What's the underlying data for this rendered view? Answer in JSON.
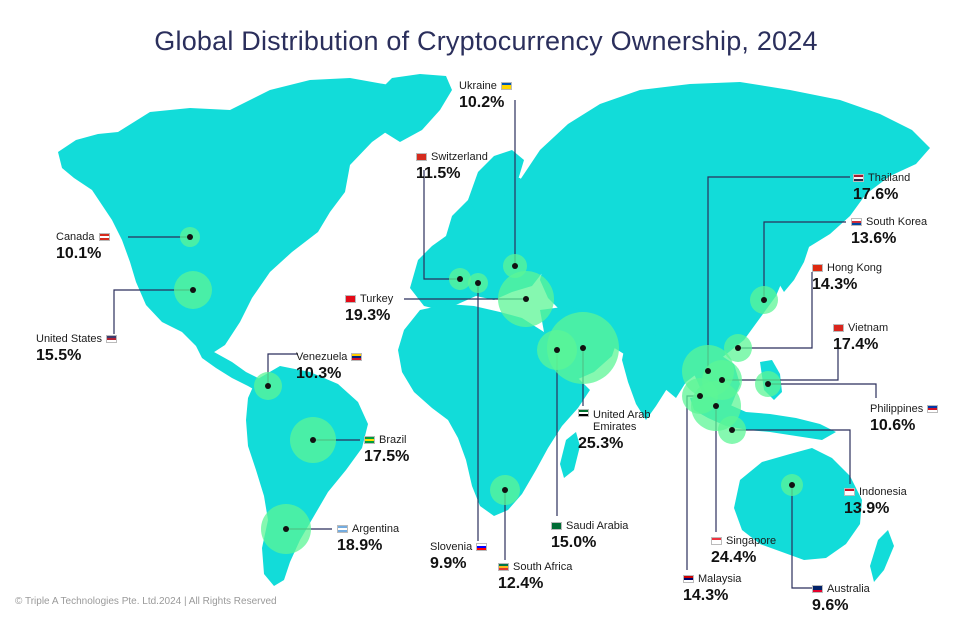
{
  "title": "Global Distribution of Cryptocurrency Ownership, 2024",
  "copyright": "© Triple A Technologies Pte. Ltd.2024 | All Rights Reserved",
  "colors": {
    "land": "#12dcd9",
    "bubble": "#5cf596",
    "line": "#2b2f5c",
    "title": "#2b2f5c"
  },
  "countries": [
    {
      "name": "Canada",
      "value": "10.1%",
      "flag": [
        "#d52b1e",
        "#ffffff",
        "#d52b1e"
      ]
    },
    {
      "name": "United States",
      "value": "15.5%",
      "flag": [
        "#3c3b6e",
        "#b22234",
        "#ffffff"
      ]
    },
    {
      "name": "Venezuela",
      "value": "10.3%",
      "flag": [
        "#ffcc00",
        "#00247d",
        "#cf142b"
      ]
    },
    {
      "name": "Brazil",
      "value": "17.5%",
      "flag": [
        "#009c3b",
        "#ffdf00",
        "#009c3b"
      ]
    },
    {
      "name": "Argentina",
      "value": "18.9%",
      "flag": [
        "#74acdf",
        "#ffffff",
        "#74acdf"
      ]
    },
    {
      "name": "Switzerland",
      "value": "11.5%",
      "flag": [
        "#d52b1e",
        "#d52b1e",
        "#d52b1e"
      ]
    },
    {
      "name": "Ukraine",
      "value": "10.2%",
      "flag": [
        "#0057b7",
        "#ffd700",
        "#ffd700"
      ]
    },
    {
      "name": "Turkey",
      "value": "19.3%",
      "flag": [
        "#e30a17",
        "#e30a17",
        "#e30a17"
      ]
    },
    {
      "name": "Slovenia",
      "value": "9.9%",
      "flag": [
        "#ffffff",
        "#0000ff",
        "#ff0000"
      ]
    },
    {
      "name": "South Africa",
      "value": "12.4%",
      "flag": [
        "#007749",
        "#ffb81c",
        "#de3831"
      ]
    },
    {
      "name": "Saudi Arabia",
      "value": "15.0%",
      "flag": [
        "#006c35",
        "#006c35",
        "#006c35"
      ]
    },
    {
      "name": "United Arab Emirates",
      "name_lines": [
        "United Arab",
        "Emirates"
      ],
      "value": "25.3%",
      "flag": [
        "#00732f",
        "#ffffff",
        "#000000"
      ]
    },
    {
      "name": "Thailand",
      "value": "17.6%",
      "flag": [
        "#a51931",
        "#f4f5f8",
        "#2d2a4a"
      ]
    },
    {
      "name": "South Korea",
      "value": "13.6%",
      "flag": [
        "#ffffff",
        "#cd2e3a",
        "#0047a0"
      ]
    },
    {
      "name": "Hong Kong",
      "value": "14.3%",
      "flag": [
        "#de2910",
        "#de2910",
        "#de2910"
      ]
    },
    {
      "name": "Vietnam",
      "value": "17.4%",
      "flag": [
        "#da251d",
        "#da251d",
        "#da251d"
      ]
    },
    {
      "name": "Philippines",
      "value": "10.6%",
      "flag": [
        "#0038a8",
        "#ce1126",
        "#ffffff"
      ]
    },
    {
      "name": "Indonesia",
      "value": "13.9%",
      "flag": [
        "#ce1126",
        "#ffffff",
        "#ffffff"
      ]
    },
    {
      "name": "Singapore",
      "value": "24.4%",
      "flag": [
        "#ef3340",
        "#ffffff",
        "#ffffff"
      ]
    },
    {
      "name": "Malaysia",
      "value": "14.3%",
      "flag": [
        "#cc0001",
        "#010066",
        "#ffffff"
      ]
    },
    {
      "name": "Australia",
      "value": "9.6%",
      "flag": [
        "#012169",
        "#012169",
        "#e4002b"
      ]
    }
  ]
}
